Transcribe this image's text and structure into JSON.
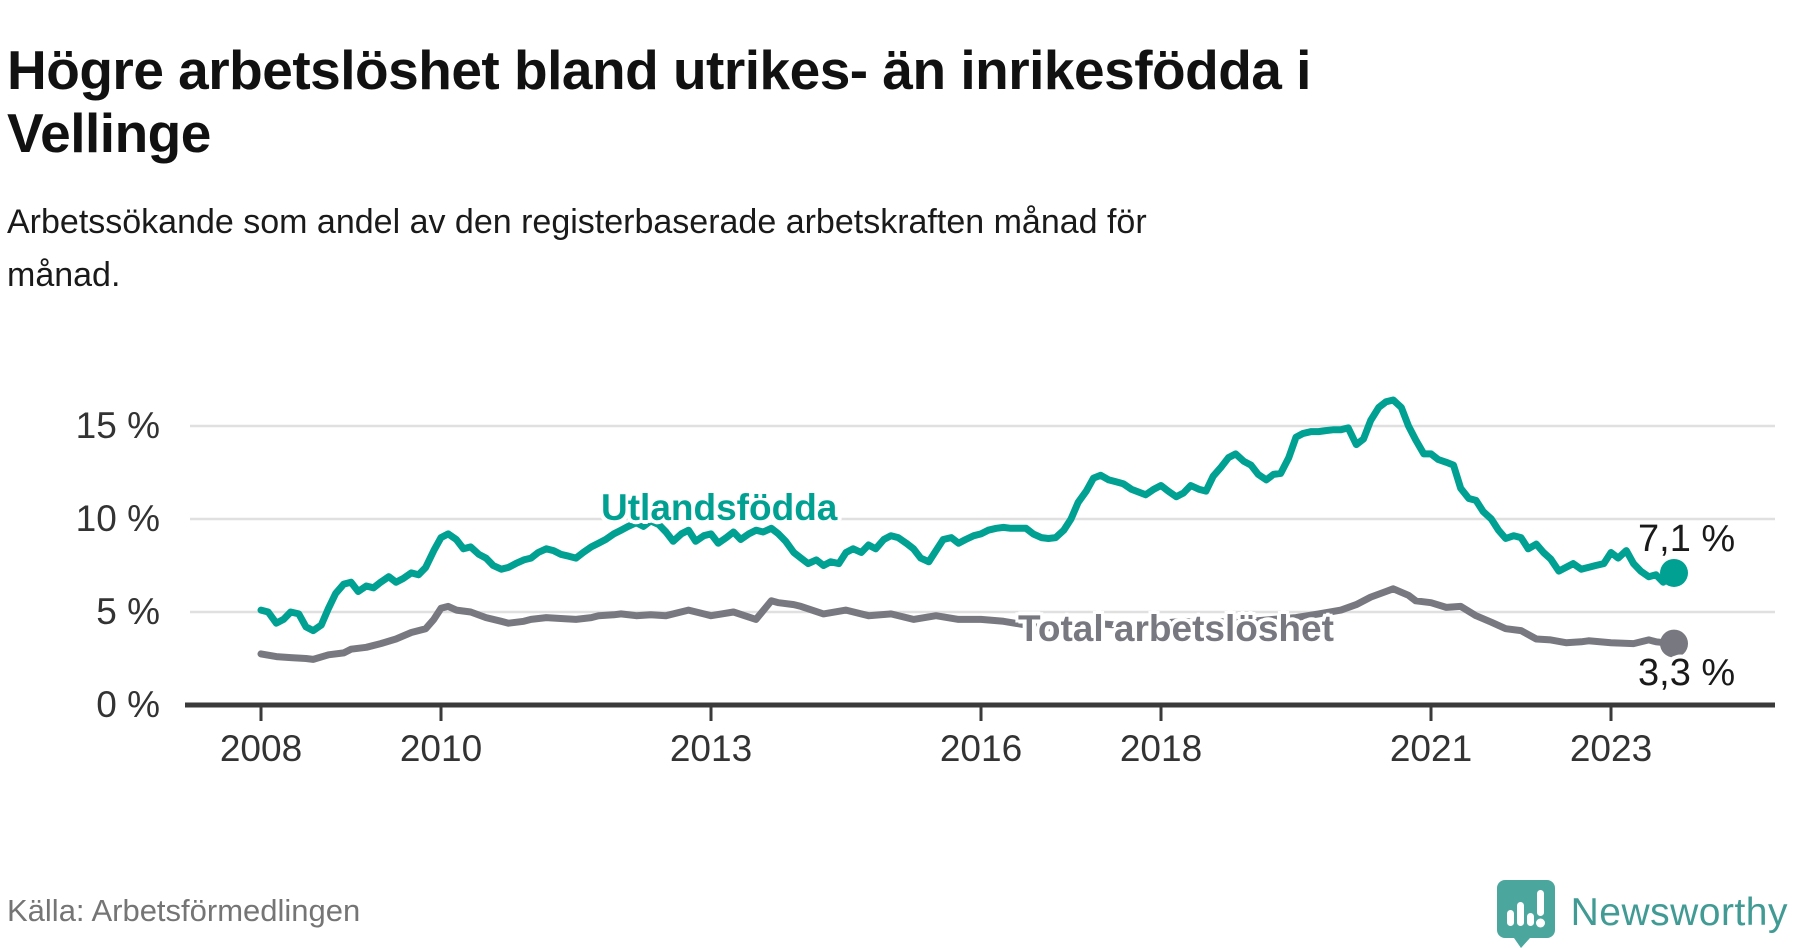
{
  "title_lines": [
    "Högre arbetslöshet bland utrikes- än inrikesfödda i",
    "Vellinge"
  ],
  "subtitle_lines": [
    "Arbetssökande som andel av den registerbaserade arbetskraften månad för",
    "månad."
  ],
  "source": "Källa: Arbetsförmedlingen",
  "brand": {
    "name": "Newsworthy",
    "color": "#419b94"
  },
  "colors": {
    "grid": "#e0e0e0",
    "axis": "#3a3a3a",
    "tick_text": "#333333"
  },
  "chart_data": {
    "type": "line",
    "title": "Högre arbetslöshet bland utrikes- än inrikesfödda i Vellinge",
    "xlabel": "",
    "ylabel": "Arbetssökande som andel av den registerbaserade arbetskraften",
    "x_ticks": [
      2008,
      2010,
      2013,
      2016,
      2018,
      2021,
      2023
    ],
    "y_ticks": [
      0,
      5,
      10,
      15
    ],
    "y_tick_suffix": " %",
    "x_range": [
      2007.75,
      2024.1
    ],
    "y_range": [
      0,
      16.5
    ],
    "grid": true,
    "series": [
      {
        "name": "Utlandsfödda",
        "color": "#00a192",
        "end_label": "7,1 %",
        "points": [
          [
            2008.0,
            5.1
          ],
          [
            2008.08,
            5.0
          ],
          [
            2008.17,
            4.4
          ],
          [
            2008.25,
            4.6
          ],
          [
            2008.33,
            5.0
          ],
          [
            2008.42,
            4.9
          ],
          [
            2008.5,
            4.2
          ],
          [
            2008.58,
            4.0
          ],
          [
            2008.67,
            4.3
          ],
          [
            2008.75,
            5.2
          ],
          [
            2008.83,
            6.0
          ],
          [
            2008.92,
            6.5
          ],
          [
            2009.0,
            6.6
          ],
          [
            2009.08,
            6.1
          ],
          [
            2009.17,
            6.4
          ],
          [
            2009.25,
            6.3
          ],
          [
            2009.33,
            6.6
          ],
          [
            2009.42,
            6.9
          ],
          [
            2009.5,
            6.6
          ],
          [
            2009.58,
            6.8
          ],
          [
            2009.67,
            7.1
          ],
          [
            2009.75,
            7.0
          ],
          [
            2009.83,
            7.4
          ],
          [
            2009.92,
            8.3
          ],
          [
            2010.0,
            9.0
          ],
          [
            2010.08,
            9.2
          ],
          [
            2010.17,
            8.9
          ],
          [
            2010.25,
            8.4
          ],
          [
            2010.33,
            8.5
          ],
          [
            2010.42,
            8.1
          ],
          [
            2010.5,
            7.9
          ],
          [
            2010.58,
            7.5
          ],
          [
            2010.67,
            7.3
          ],
          [
            2010.75,
            7.4
          ],
          [
            2010.83,
            7.6
          ],
          [
            2010.92,
            7.8
          ],
          [
            2011.0,
            7.9
          ],
          [
            2011.08,
            8.2
          ],
          [
            2011.17,
            8.4
          ],
          [
            2011.25,
            8.3
          ],
          [
            2011.33,
            8.1
          ],
          [
            2011.42,
            8.0
          ],
          [
            2011.5,
            7.9
          ],
          [
            2011.58,
            8.2
          ],
          [
            2011.67,
            8.5
          ],
          [
            2011.75,
            8.7
          ],
          [
            2011.83,
            8.9
          ],
          [
            2011.92,
            9.2
          ],
          [
            2012.0,
            9.4
          ],
          [
            2012.08,
            9.6
          ],
          [
            2012.17,
            9.8
          ],
          [
            2012.25,
            9.6
          ],
          [
            2012.33,
            9.9
          ],
          [
            2012.42,
            9.7
          ],
          [
            2012.5,
            9.3
          ],
          [
            2012.58,
            8.8
          ],
          [
            2012.67,
            9.2
          ],
          [
            2012.75,
            9.4
          ],
          [
            2012.83,
            8.8
          ],
          [
            2012.92,
            9.1
          ],
          [
            2013.0,
            9.2
          ],
          [
            2013.08,
            8.7
          ],
          [
            2013.17,
            9.0
          ],
          [
            2013.25,
            9.3
          ],
          [
            2013.33,
            8.9
          ],
          [
            2013.42,
            9.2
          ],
          [
            2013.5,
            9.4
          ],
          [
            2013.58,
            9.3
          ],
          [
            2013.67,
            9.5
          ],
          [
            2013.75,
            9.2
          ],
          [
            2013.83,
            8.8
          ],
          [
            2013.92,
            8.2
          ],
          [
            2014.0,
            7.9
          ],
          [
            2014.08,
            7.6
          ],
          [
            2014.17,
            7.8
          ],
          [
            2014.25,
            7.5
          ],
          [
            2014.33,
            7.7
          ],
          [
            2014.42,
            7.6
          ],
          [
            2014.5,
            8.2
          ],
          [
            2014.58,
            8.4
          ],
          [
            2014.67,
            8.2
          ],
          [
            2014.75,
            8.6
          ],
          [
            2014.83,
            8.4
          ],
          [
            2014.92,
            8.9
          ],
          [
            2015.0,
            9.1
          ],
          [
            2015.08,
            9.0
          ],
          [
            2015.17,
            8.7
          ],
          [
            2015.25,
            8.4
          ],
          [
            2015.33,
            7.9
          ],
          [
            2015.42,
            7.7
          ],
          [
            2015.5,
            8.3
          ],
          [
            2015.58,
            8.9
          ],
          [
            2015.67,
            9.0
          ],
          [
            2015.75,
            8.7
          ],
          [
            2015.83,
            8.9
          ],
          [
            2015.92,
            9.1
          ],
          [
            2016.0,
            9.2
          ],
          [
            2016.08,
            9.4
          ],
          [
            2016.17,
            9.5
          ],
          [
            2016.25,
            9.55
          ],
          [
            2016.33,
            9.5
          ],
          [
            2016.42,
            9.5
          ],
          [
            2016.5,
            9.5
          ],
          [
            2016.58,
            9.2
          ],
          [
            2016.67,
            9.0
          ],
          [
            2016.75,
            8.95
          ],
          [
            2016.83,
            9.0
          ],
          [
            2016.92,
            9.4
          ],
          [
            2017.0,
            10.0
          ],
          [
            2017.08,
            10.9
          ],
          [
            2017.17,
            11.5
          ],
          [
            2017.25,
            12.2
          ],
          [
            2017.33,
            12.35
          ],
          [
            2017.42,
            12.1
          ],
          [
            2017.5,
            12.0
          ],
          [
            2017.58,
            11.9
          ],
          [
            2017.67,
            11.6
          ],
          [
            2017.75,
            11.45
          ],
          [
            2017.83,
            11.3
          ],
          [
            2017.92,
            11.6
          ],
          [
            2018.0,
            11.8
          ],
          [
            2018.08,
            11.5
          ],
          [
            2018.17,
            11.2
          ],
          [
            2018.25,
            11.4
          ],
          [
            2018.33,
            11.8
          ],
          [
            2018.42,
            11.6
          ],
          [
            2018.5,
            11.5
          ],
          [
            2018.58,
            12.3
          ],
          [
            2018.67,
            12.8
          ],
          [
            2018.75,
            13.3
          ],
          [
            2018.83,
            13.5
          ],
          [
            2018.92,
            13.1
          ],
          [
            2019.0,
            12.9
          ],
          [
            2019.08,
            12.4
          ],
          [
            2019.17,
            12.1
          ],
          [
            2019.25,
            12.4
          ],
          [
            2019.33,
            12.45
          ],
          [
            2019.42,
            13.3
          ],
          [
            2019.5,
            14.4
          ],
          [
            2019.58,
            14.6
          ],
          [
            2019.67,
            14.7
          ],
          [
            2019.75,
            14.7
          ],
          [
            2019.83,
            14.75
          ],
          [
            2019.92,
            14.8
          ],
          [
            2020.0,
            14.8
          ],
          [
            2020.08,
            14.9
          ],
          [
            2020.17,
            14.0
          ],
          [
            2020.25,
            14.3
          ],
          [
            2020.33,
            15.3
          ],
          [
            2020.42,
            16.0
          ],
          [
            2020.5,
            16.3
          ],
          [
            2020.58,
            16.4
          ],
          [
            2020.67,
            16.0
          ],
          [
            2020.75,
            15.0
          ],
          [
            2020.83,
            14.25
          ],
          [
            2020.92,
            13.5
          ],
          [
            2021.0,
            13.5
          ],
          [
            2021.08,
            13.2
          ],
          [
            2021.17,
            13.05
          ],
          [
            2021.25,
            12.9
          ],
          [
            2021.33,
            11.65
          ],
          [
            2021.42,
            11.1
          ],
          [
            2021.5,
            11.0
          ],
          [
            2021.58,
            10.4
          ],
          [
            2021.67,
            10.0
          ],
          [
            2021.75,
            9.4
          ],
          [
            2021.83,
            8.95
          ],
          [
            2021.92,
            9.1
          ],
          [
            2022.0,
            9.0
          ],
          [
            2022.08,
            8.4
          ],
          [
            2022.17,
            8.65
          ],
          [
            2022.25,
            8.2
          ],
          [
            2022.33,
            7.85
          ],
          [
            2022.42,
            7.2
          ],
          [
            2022.5,
            7.4
          ],
          [
            2022.58,
            7.6
          ],
          [
            2022.67,
            7.3
          ],
          [
            2022.75,
            7.4
          ],
          [
            2022.83,
            7.5
          ],
          [
            2022.92,
            7.6
          ],
          [
            2023.0,
            8.2
          ],
          [
            2023.08,
            7.9
          ],
          [
            2023.17,
            8.3
          ],
          [
            2023.25,
            7.6
          ],
          [
            2023.33,
            7.2
          ],
          [
            2023.42,
            6.9
          ],
          [
            2023.5,
            7.0
          ],
          [
            2023.58,
            6.6
          ],
          [
            2023.7,
            7.1
          ]
        ]
      },
      {
        "name": "Total arbetslöshet",
        "color": "#787880",
        "end_label": "3,3 %",
        "points": [
          [
            2008.0,
            2.75
          ],
          [
            2008.17,
            2.6
          ],
          [
            2008.33,
            2.55
          ],
          [
            2008.5,
            2.5
          ],
          [
            2008.58,
            2.45
          ],
          [
            2008.75,
            2.7
          ],
          [
            2008.92,
            2.8
          ],
          [
            2009.0,
            3.0
          ],
          [
            2009.17,
            3.1
          ],
          [
            2009.33,
            3.3
          ],
          [
            2009.5,
            3.55
          ],
          [
            2009.67,
            3.9
          ],
          [
            2009.83,
            4.1
          ],
          [
            2009.92,
            4.6
          ],
          [
            2010.0,
            5.2
          ],
          [
            2010.08,
            5.3
          ],
          [
            2010.17,
            5.1
          ],
          [
            2010.33,
            5.0
          ],
          [
            2010.5,
            4.7
          ],
          [
            2010.67,
            4.5
          ],
          [
            2010.75,
            4.4
          ],
          [
            2010.92,
            4.5
          ],
          [
            2011.0,
            4.6
          ],
          [
            2011.17,
            4.7
          ],
          [
            2011.33,
            4.65
          ],
          [
            2011.5,
            4.6
          ],
          [
            2011.67,
            4.7
          ],
          [
            2011.75,
            4.8
          ],
          [
            2011.92,
            4.85
          ],
          [
            2012.0,
            4.9
          ],
          [
            2012.17,
            4.8
          ],
          [
            2012.33,
            4.85
          ],
          [
            2012.5,
            4.8
          ],
          [
            2012.75,
            5.1
          ],
          [
            2012.92,
            4.9
          ],
          [
            2013.0,
            4.8
          ],
          [
            2013.25,
            5.0
          ],
          [
            2013.5,
            4.6
          ],
          [
            2013.67,
            5.6
          ],
          [
            2013.75,
            5.5
          ],
          [
            2013.92,
            5.4
          ],
          [
            2014.0,
            5.3
          ],
          [
            2014.25,
            4.9
          ],
          [
            2014.5,
            5.1
          ],
          [
            2014.75,
            4.8
          ],
          [
            2015.0,
            4.9
          ],
          [
            2015.25,
            4.6
          ],
          [
            2015.5,
            4.8
          ],
          [
            2015.75,
            4.6
          ],
          [
            2016.0,
            4.6
          ],
          [
            2016.25,
            4.5
          ],
          [
            2016.5,
            4.3
          ],
          [
            2016.75,
            4.15
          ],
          [
            2017.0,
            4.2
          ],
          [
            2017.25,
            4.4
          ],
          [
            2017.5,
            4.3
          ],
          [
            2017.75,
            4.3
          ],
          [
            2018.0,
            4.4
          ],
          [
            2018.25,
            4.5
          ],
          [
            2018.5,
            4.4
          ],
          [
            2018.75,
            4.5
          ],
          [
            2019.0,
            4.5
          ],
          [
            2019.25,
            4.6
          ],
          [
            2019.5,
            4.7
          ],
          [
            2019.75,
            4.9
          ],
          [
            2020.0,
            5.1
          ],
          [
            2020.17,
            5.4
          ],
          [
            2020.33,
            5.8
          ],
          [
            2020.5,
            6.1
          ],
          [
            2020.58,
            6.25
          ],
          [
            2020.75,
            5.9
          ],
          [
            2020.83,
            5.6
          ],
          [
            2021.0,
            5.5
          ],
          [
            2021.17,
            5.25
          ],
          [
            2021.33,
            5.3
          ],
          [
            2021.5,
            4.8
          ],
          [
            2021.67,
            4.45
          ],
          [
            2021.83,
            4.1
          ],
          [
            2022.0,
            4.0
          ],
          [
            2022.17,
            3.55
          ],
          [
            2022.33,
            3.5
          ],
          [
            2022.5,
            3.35
          ],
          [
            2022.67,
            3.4
          ],
          [
            2022.75,
            3.45
          ],
          [
            2023.0,
            3.35
          ],
          [
            2023.25,
            3.3
          ],
          [
            2023.42,
            3.5
          ],
          [
            2023.5,
            3.4
          ],
          [
            2023.7,
            3.3
          ]
        ]
      }
    ]
  }
}
